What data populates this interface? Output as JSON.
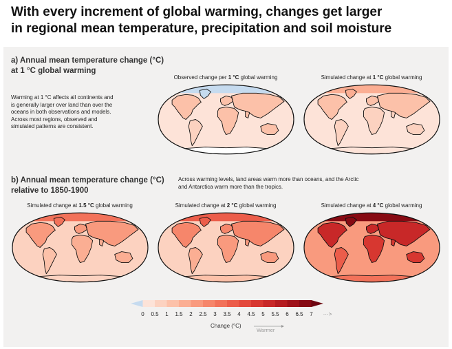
{
  "title_line1": "With every increment of global warming, changes get larger",
  "title_line2": "in regional mean temperature, precipitation and soil moisture",
  "section_a": {
    "heading_line1": "a) Annual mean temperature change (°C)",
    "heading_line2": "at 1 °C global warming",
    "description": [
      "Warming at 1 °C affects all continents and",
      "is generally larger over land than over the",
      "oceans in both observations and models.",
      "Across most regions, observed and",
      "simulated patterns are consistent."
    ],
    "maps": [
      {
        "prefix": "Observed change per ",
        "bold": "1 °C",
        "suffix": " global warming"
      },
      {
        "prefix": "Simulated change at ",
        "bold": "1 °C",
        "suffix": " global warming"
      }
    ]
  },
  "section_b": {
    "heading_line1": "b) Annual mean temperature change (°C)",
    "heading_line2": "relative to 1850-1900",
    "description": [
      "Across warming levels, land areas warm more than oceans, and the Arctic",
      "and Antarctica warm more than the tropics."
    ],
    "maps": [
      {
        "prefix": "Simulated change at ",
        "bold": "1.5 °C",
        "suffix": " global warming"
      },
      {
        "prefix": "Simulated change at ",
        "bold": "2 °C",
        "suffix": " global warming"
      },
      {
        "prefix": "Simulated change at ",
        "bold": "4 °C",
        "suffix": " global warming"
      }
    ]
  },
  "legend": {
    "ticks": [
      "0",
      "0.5",
      "1",
      "1.5",
      "2",
      "2.5",
      "3",
      "3.5",
      "4",
      "4.5",
      "5",
      "5.5",
      "6",
      "6.5",
      "7"
    ],
    "more_arrow": "···>",
    "label": "Change (°C)",
    "direction_label": "Warmer",
    "colors": [
      "#c6dbef",
      "#fde3d8",
      "#fcd2c0",
      "#fcc1a9",
      "#fbae93",
      "#f99a7e",
      "#f6866b",
      "#f2725a",
      "#ec5d4a",
      "#e3493c",
      "#d73730",
      "#c82828",
      "#b51c20",
      "#9f1219",
      "#870a13",
      "#6e0510"
    ]
  }
}
